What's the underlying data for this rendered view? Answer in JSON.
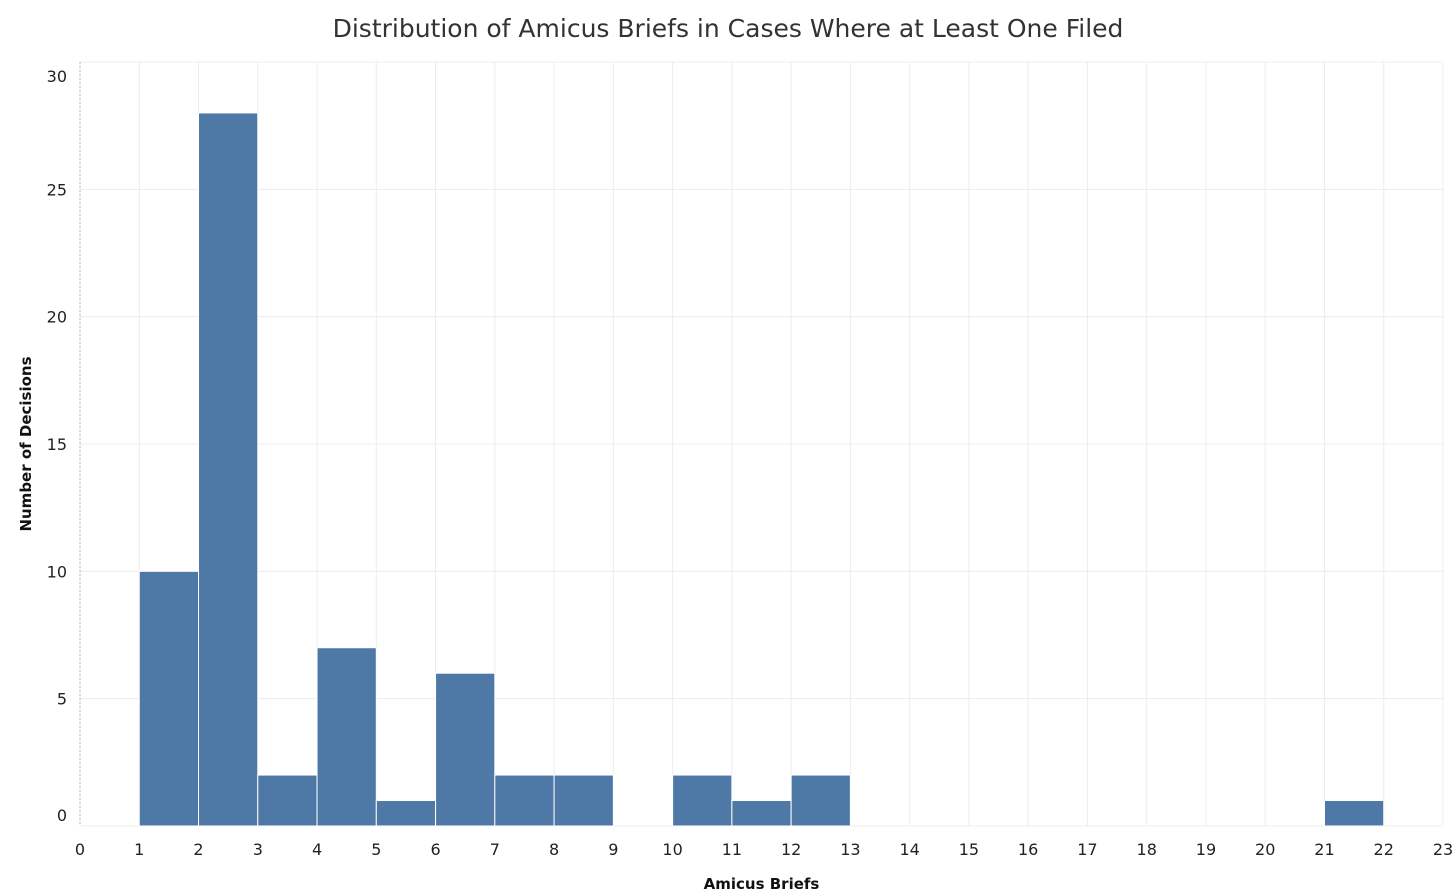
{
  "chart_data": {
    "type": "bar",
    "title": "Distribution of Amicus Briefs in Cases Where at Least One Filed",
    "xlabel": "Amicus Briefs",
    "ylabel": "Number of Decisions",
    "xlim": [
      0,
      23
    ],
    "ylim": [
      0,
      30
    ],
    "x_ticks": [
      "0",
      "1",
      "2",
      "3",
      "4",
      "5",
      "6",
      "7",
      "8",
      "9",
      "10",
      "11",
      "12",
      "13",
      "14",
      "15",
      "16",
      "17",
      "18",
      "19",
      "20",
      "21",
      "22",
      "23"
    ],
    "y_ticks": [
      "0",
      "5",
      "10",
      "15",
      "20",
      "25",
      "30"
    ],
    "bins": [
      {
        "start": 1,
        "end": 2,
        "value": 10
      },
      {
        "start": 2,
        "end": 3,
        "value": 28
      },
      {
        "start": 3,
        "end": 4,
        "value": 2
      },
      {
        "start": 4,
        "end": 5,
        "value": 7
      },
      {
        "start": 5,
        "end": 6,
        "value": 1
      },
      {
        "start": 6,
        "end": 7,
        "value": 6
      },
      {
        "start": 7,
        "end": 8,
        "value": 2
      },
      {
        "start": 8,
        "end": 9,
        "value": 2
      },
      {
        "start": 10,
        "end": 11,
        "value": 2
      },
      {
        "start": 11,
        "end": 12,
        "value": 1
      },
      {
        "start": 12,
        "end": 13,
        "value": 2
      },
      {
        "start": 21,
        "end": 22,
        "value": 1
      }
    ],
    "bar_color": "#4e79a7",
    "grid": true
  }
}
